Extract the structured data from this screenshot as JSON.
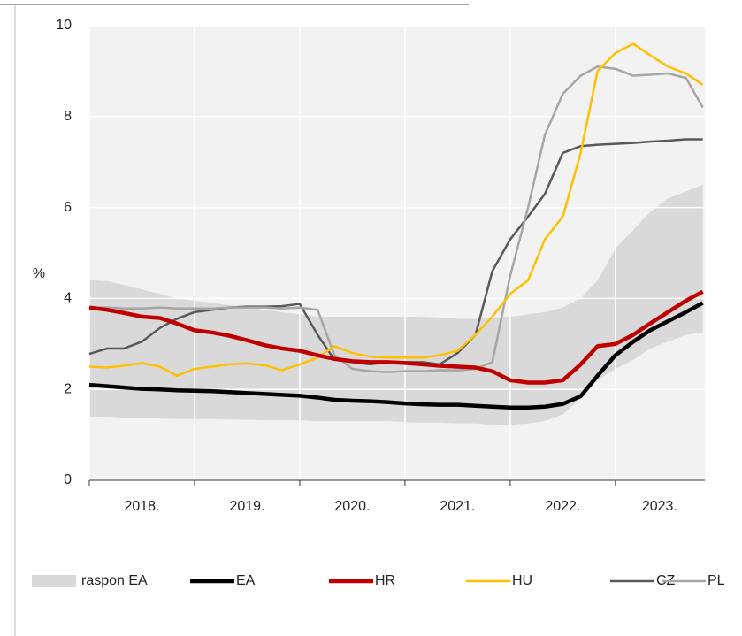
{
  "chart_data": {
    "type": "line",
    "y_label": "%",
    "xlim": [
      2018,
      2023.85
    ],
    "ylim": [
      0,
      10
    ],
    "yticks": [
      0,
      2,
      4,
      6,
      8,
      10
    ],
    "xgrid": [
      2018,
      2019,
      2020,
      2021,
      2022,
      2023
    ],
    "xticks": [
      {
        "value": 2018.5,
        "label": "2018."
      },
      {
        "value": 2019.5,
        "label": "2019."
      },
      {
        "value": 2020.5,
        "label": "2020."
      },
      {
        "value": 2021.5,
        "label": "2021."
      },
      {
        "value": 2022.5,
        "label": "2022."
      },
      {
        "value": 2023.42,
        "label": "2023."
      }
    ],
    "grid": true,
    "x": [
      2018.0,
      2018.17,
      2018.33,
      2018.5,
      2018.67,
      2018.83,
      2019.0,
      2019.17,
      2019.33,
      2019.5,
      2019.67,
      2019.83,
      2020.0,
      2020.17,
      2020.33,
      2020.5,
      2020.67,
      2020.83,
      2021.0,
      2021.17,
      2021.33,
      2021.5,
      2021.67,
      2021.83,
      2022.0,
      2022.17,
      2022.33,
      2022.5,
      2022.67,
      2022.83,
      2023.0,
      2023.17,
      2023.33,
      2023.5,
      2023.67,
      2023.83
    ],
    "band": {
      "name": "raspon EA",
      "color": "#d9d9d9",
      "upper": [
        4.4,
        4.38,
        4.3,
        4.2,
        4.1,
        4.0,
        3.95,
        3.9,
        3.85,
        3.8,
        3.75,
        3.7,
        3.65,
        3.6,
        3.6,
        3.6,
        3.6,
        3.6,
        3.6,
        3.6,
        3.58,
        3.55,
        3.55,
        3.58,
        3.6,
        3.65,
        3.7,
        3.8,
        4.0,
        4.4,
        5.1,
        5.5,
        5.9,
        6.2,
        6.35,
        6.5
      ],
      "lower": [
        1.4,
        1.4,
        1.38,
        1.37,
        1.36,
        1.35,
        1.35,
        1.35,
        1.34,
        1.33,
        1.32,
        1.32,
        1.32,
        1.3,
        1.3,
        1.3,
        1.3,
        1.3,
        1.28,
        1.27,
        1.27,
        1.25,
        1.25,
        1.22,
        1.22,
        1.25,
        1.3,
        1.45,
        1.8,
        2.2,
        2.45,
        2.65,
        2.9,
        3.05,
        3.2,
        3.25
      ]
    },
    "series": [
      {
        "name": "CZ",
        "color": "#595959",
        "width": 2.5,
        "values": [
          2.78,
          2.9,
          2.9,
          3.05,
          3.35,
          3.55,
          3.7,
          3.75,
          3.8,
          3.82,
          3.82,
          3.83,
          3.88,
          3.2,
          2.65,
          2.6,
          2.55,
          2.6,
          2.6,
          2.6,
          2.55,
          2.8,
          3.2,
          4.6,
          5.3,
          5.8,
          6.3,
          7.2,
          7.35,
          7.38,
          7.4,
          7.42,
          7.45,
          7.47,
          7.5,
          7.5
        ]
      },
      {
        "name": "PL",
        "color": "#a6a6a6",
        "width": 2.5,
        "values": [
          3.8,
          3.8,
          3.78,
          3.78,
          3.8,
          3.78,
          3.78,
          3.78,
          3.8,
          3.8,
          3.8,
          3.78,
          3.8,
          3.75,
          2.75,
          2.45,
          2.4,
          2.38,
          2.4,
          2.4,
          2.42,
          2.42,
          2.45,
          2.6,
          4.5,
          6.0,
          7.6,
          8.5,
          8.9,
          9.1,
          9.05,
          8.9,
          8.92,
          8.95,
          8.85,
          8.2
        ]
      },
      {
        "name": "HU",
        "color": "#ffc000",
        "width": 2.5,
        "values": [
          2.5,
          2.48,
          2.52,
          2.58,
          2.5,
          2.3,
          2.45,
          2.5,
          2.55,
          2.57,
          2.53,
          2.42,
          2.55,
          2.7,
          2.95,
          2.8,
          2.72,
          2.7,
          2.7,
          2.7,
          2.75,
          2.85,
          3.2,
          3.6,
          4.1,
          4.4,
          5.3,
          5.8,
          7.2,
          9.0,
          9.4,
          9.6,
          9.35,
          9.1,
          8.95,
          8.7
        ]
      },
      {
        "name": "HR",
        "color": "#c00000",
        "width": 4.5,
        "values": [
          3.8,
          3.75,
          3.68,
          3.6,
          3.57,
          3.45,
          3.3,
          3.25,
          3.18,
          3.08,
          2.97,
          2.9,
          2.85,
          2.75,
          2.67,
          2.62,
          2.6,
          2.6,
          2.58,
          2.55,
          2.52,
          2.5,
          2.48,
          2.4,
          2.2,
          2.15,
          2.15,
          2.2,
          2.55,
          2.95,
          3.0,
          3.2,
          3.45,
          3.7,
          3.95,
          4.15
        ]
      },
      {
        "name": "EA",
        "color": "#000000",
        "width": 4.5,
        "values": [
          2.1,
          2.07,
          2.04,
          2.01,
          2.0,
          1.98,
          1.97,
          1.96,
          1.94,
          1.92,
          1.9,
          1.88,
          1.86,
          1.82,
          1.77,
          1.75,
          1.74,
          1.72,
          1.69,
          1.67,
          1.66,
          1.66,
          1.64,
          1.62,
          1.6,
          1.6,
          1.62,
          1.68,
          1.85,
          2.3,
          2.75,
          3.05,
          3.3,
          3.5,
          3.7,
          3.9
        ]
      }
    ],
    "legend_order": [
      "band",
      4,
      3,
      2,
      0,
      1
    ]
  }
}
